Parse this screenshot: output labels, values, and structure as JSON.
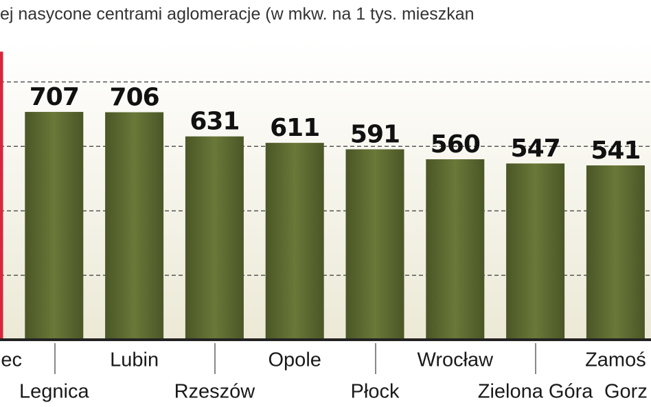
{
  "chart_data": {
    "type": "bar",
    "title": "ej nasycone centrami aglomeracje (w mkw. na 1 tys. mieszkan",
    "categories": [
      "ec",
      "Legnica",
      "Lubin",
      "Rzeszów",
      "Opole",
      "Płock",
      "Wrocław",
      "Zielona Góra",
      "Zamoś",
      "Gorz"
    ],
    "values": [
      894,
      707,
      706,
      631,
      611,
      591,
      560,
      547,
      541,
      null
    ],
    "colors": [
      "#d7263d",
      "#5a6630",
      "#5a6630",
      "#5a6630",
      "#5a6630",
      "#5a6630",
      "#5a6630",
      "#5a6630",
      "#5a6630",
      "#5a6630"
    ],
    "ylim": [
      0,
      1050
    ],
    "yticks": [
      200,
      400,
      600,
      800
    ],
    "grid": true
  }
}
